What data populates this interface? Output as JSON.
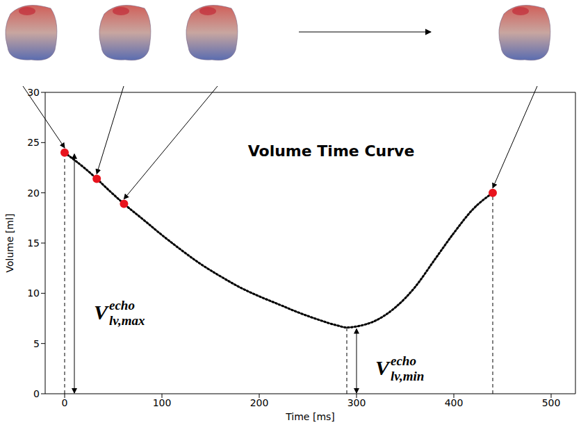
{
  "chart_data": {
    "type": "line",
    "title": "Volume Time Curve",
    "x_label": "Time [ms]",
    "y_label": "Volume [ml]",
    "x": [
      0,
      20,
      33,
      45,
      61,
      80,
      100,
      120,
      140,
      160,
      180,
      200,
      220,
      240,
      260,
      280,
      290,
      300,
      320,
      340,
      360,
      380,
      400,
      420,
      440
    ],
    "values": [
      24.0,
      22.5,
      21.4,
      20.3,
      18.9,
      17.4,
      15.8,
      14.3,
      12.9,
      11.7,
      10.6,
      9.7,
      8.9,
      8.1,
      7.4,
      6.8,
      6.6,
      6.7,
      7.3,
      8.6,
      10.6,
      13.3,
      16.0,
      18.4,
      20.0
    ],
    "color": "#000000",
    "line_style": "dotted",
    "markers": {
      "x": [
        0,
        33,
        61,
        440
      ],
      "values": [
        24.0,
        21.4,
        18.9,
        20.0
      ],
      "color": "#e8141e"
    },
    "annotations": [
      {
        "base": "V",
        "subscript": "lv,max",
        "superscript": "echo",
        "x": 0,
        "value": 24.0
      },
      {
        "base": "V",
        "subscript": "lv,min",
        "superscript": "echo",
        "x": 290,
        "value": 6.6
      }
    ],
    "xlim": [
      -20,
      525
    ],
    "ylim": [
      0,
      30
    ],
    "xticks": [
      0,
      100,
      200,
      300,
      400,
      500
    ],
    "yticks": [
      0,
      5,
      10,
      15,
      20,
      25,
      30
    ],
    "grid": false
  }
}
